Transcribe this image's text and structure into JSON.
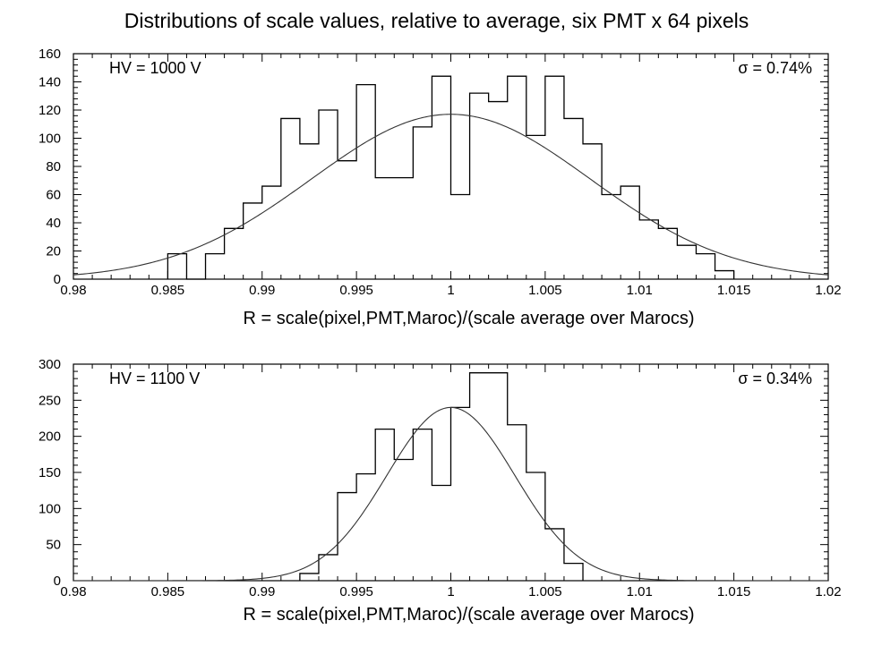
{
  "title": "Distributions of scale values, relative to average, six PMT x 64 pixels",
  "chart_data": [
    {
      "type": "histogram",
      "xlabel": "R = scale(pixel,PMT,Maroc)/(scale average over Marocs)",
      "ylabel": "",
      "xlim": [
        0.98,
        1.02
      ],
      "ylim": [
        0,
        160
      ],
      "x_ticks": [
        "0.98",
        "0.985",
        "0.99",
        "0.995",
        "1",
        "1.005",
        "1.01",
        "1.015",
        "1.02"
      ],
      "y_ticks": [
        "0",
        "20",
        "40",
        "60",
        "80",
        "100",
        "120",
        "140",
        "160"
      ],
      "annotation_left": "HV = 1000 V",
      "annotation_right": "σ = 0.74%",
      "bin_edges": [
        0.985,
        0.986,
        0.987,
        0.988,
        0.989,
        0.99,
        0.991,
        0.992,
        0.993,
        0.994,
        0.995,
        0.996,
        0.997,
        0.998,
        0.999,
        1.0,
        1.001,
        1.002,
        1.003,
        1.004,
        1.005,
        1.006,
        1.007,
        1.008,
        1.009,
        1.01,
        1.011,
        1.012,
        1.013,
        1.014,
        1.015
      ],
      "values": [
        18,
        0,
        18,
        36,
        54,
        66,
        114,
        96,
        120,
        84,
        138,
        72,
        72,
        108,
        144,
        60,
        132,
        126,
        144,
        102,
        144,
        114,
        96,
        60,
        66,
        42,
        36,
        24,
        18,
        6
      ],
      "fit": {
        "mean": 1.0,
        "sigma": 0.0074,
        "amplitude": 117
      }
    },
    {
      "type": "histogram",
      "xlabel": "R = scale(pixel,PMT,Maroc)/(scale average over Marocs)",
      "ylabel": "",
      "xlim": [
        0.98,
        1.02
      ],
      "ylim": [
        0,
        300
      ],
      "x_ticks": [
        "0.98",
        "0.985",
        "0.99",
        "0.995",
        "1",
        "1.005",
        "1.01",
        "1.015",
        "1.02"
      ],
      "y_ticks": [
        "0",
        "50",
        "100",
        "150",
        "200",
        "250",
        "300"
      ],
      "annotation_left": "HV = 1100 V",
      "annotation_right": "σ = 0.34%",
      "bin_edges": [
        0.992,
        0.993,
        0.994,
        0.995,
        0.996,
        0.997,
        0.998,
        0.999,
        1.0,
        1.001,
        1.002,
        1.003,
        1.004,
        1.005,
        1.006,
        1.007
      ],
      "values": [
        10,
        36,
        122,
        148,
        210,
        168,
        210,
        132,
        240,
        288,
        288,
        216,
        150,
        72,
        24
      ],
      "fit": {
        "mean": 1.0,
        "sigma": 0.0034,
        "amplitude": 240
      }
    }
  ]
}
